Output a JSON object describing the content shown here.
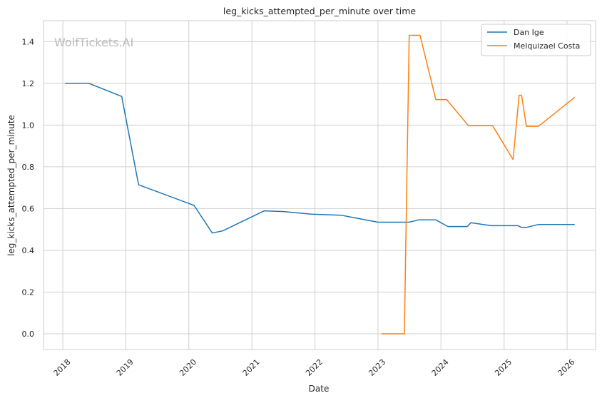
{
  "chart_data": {
    "type": "line",
    "title": "leg_kicks_attempted_per_minute over time",
    "xlabel": "Date",
    "ylabel": "leg_kicks_attempted_per_minute",
    "watermark": "WolfTickets.AI",
    "xlim": [
      "2017-09-11",
      "2026-06-15"
    ],
    "ylim": [
      -0.075,
      1.5
    ],
    "x_ticks": [
      "2018",
      "2019",
      "2020",
      "2021",
      "2022",
      "2023",
      "2024",
      "2025",
      "2026"
    ],
    "y_ticks": [
      "0.0",
      "0.2",
      "0.4",
      "0.6",
      "0.8",
      "1.0",
      "1.2",
      "1.4"
    ],
    "grid": true,
    "legend_position": "top-right",
    "series": [
      {
        "name": "Dan Ige",
        "color": "#1f77b4",
        "points": [
          [
            "2018-01-14",
            1.2
          ],
          [
            "2018-06-01",
            1.2
          ],
          [
            "2018-12-08",
            1.137
          ],
          [
            "2019-03-16",
            0.714
          ],
          [
            "2020-02-01",
            0.615
          ],
          [
            "2020-05-16",
            0.483
          ],
          [
            "2020-07-15",
            0.493
          ],
          [
            "2021-03-13",
            0.589
          ],
          [
            "2021-06-26",
            0.586
          ],
          [
            "2021-12-11",
            0.573
          ],
          [
            "2022-06-04",
            0.568
          ],
          [
            "2022-12-31",
            0.535
          ],
          [
            "2023-01-15",
            0.535
          ],
          [
            "2023-07-01",
            0.535
          ],
          [
            "2023-08-26",
            0.546
          ],
          [
            "2023-12-02",
            0.546
          ],
          [
            "2024-02-10",
            0.514
          ],
          [
            "2024-06-01",
            0.514
          ],
          [
            "2024-06-22",
            0.532
          ],
          [
            "2024-10-19",
            0.518
          ],
          [
            "2025-03-22",
            0.518
          ],
          [
            "2025-04-12",
            0.51
          ],
          [
            "2025-05-10",
            0.51
          ],
          [
            "2025-07-19",
            0.524
          ],
          [
            "2026-02-14",
            0.524
          ]
        ]
      },
      {
        "name": "Melquizael Costa",
        "color": "#ff7f0e",
        "points": [
          [
            "2023-01-21",
            0.0
          ],
          [
            "2023-06-03",
            0.0
          ],
          [
            "2023-07-01",
            1.43
          ],
          [
            "2023-09-02",
            1.43
          ],
          [
            "2023-12-02",
            1.122
          ],
          [
            "2024-02-03",
            1.122
          ],
          [
            "2024-06-08",
            0.997
          ],
          [
            "2024-10-26",
            0.997
          ],
          [
            "2025-02-22",
            0.835
          ],
          [
            "2025-03-29",
            1.143
          ],
          [
            "2025-04-12",
            1.143
          ],
          [
            "2025-05-10",
            0.994
          ],
          [
            "2025-07-19",
            0.994
          ],
          [
            "2026-02-14",
            1.133
          ]
        ]
      }
    ]
  }
}
